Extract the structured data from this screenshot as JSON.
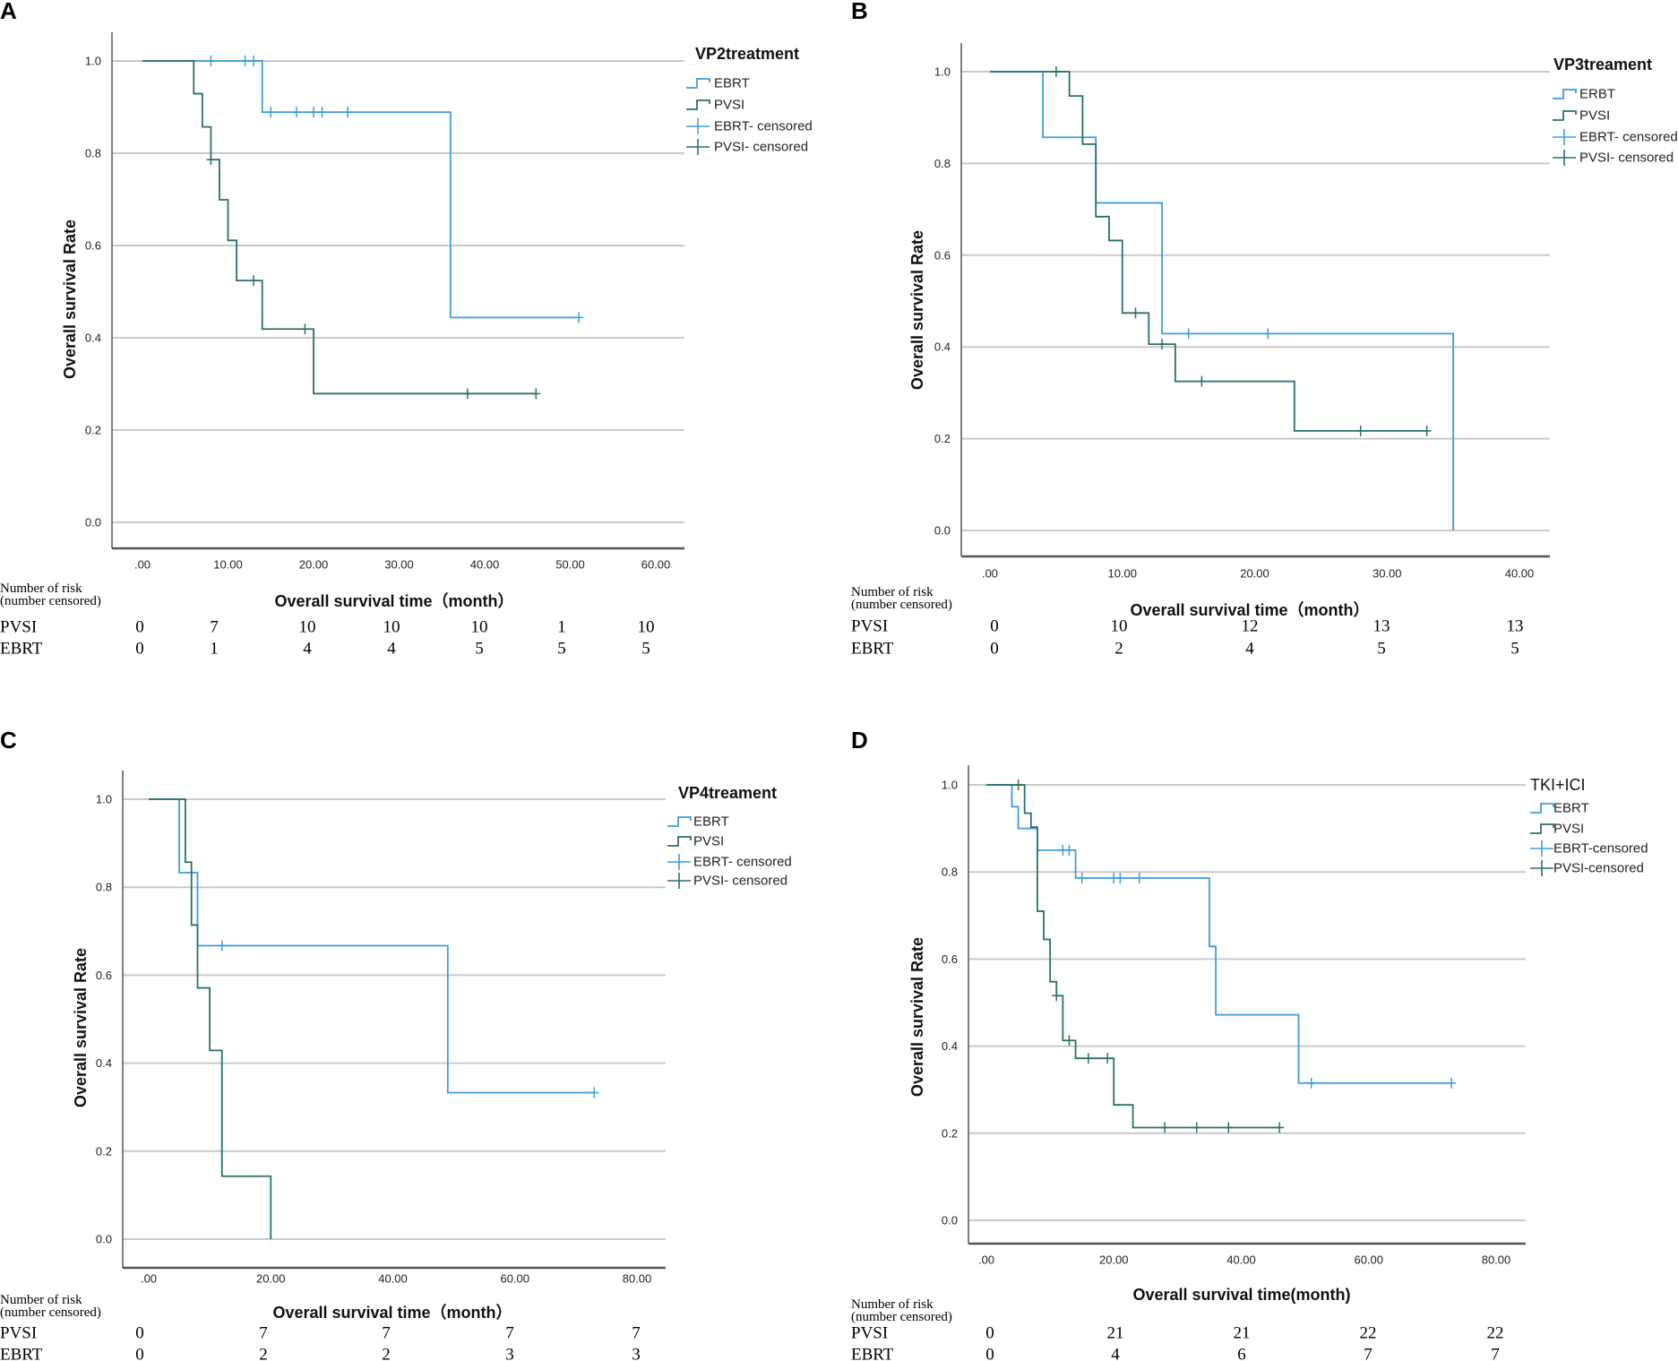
{
  "colors": {
    "EBRT": "#3d9ddc",
    "PVSI": "#2b6f6b",
    "grid": "#c9c9c9",
    "axis": "#555555"
  },
  "chart_data": [
    {
      "panel": "A",
      "type": "line",
      "title": "VP2treatment",
      "xlabel": "Overall survival time（month）",
      "ylabel": "Overall survival Rate",
      "xlim": [
        0,
        60
      ],
      "ylim": [
        0,
        1
      ],
      "xticks": [
        ".00",
        "10.00",
        "20.00",
        "30.00",
        "40.00",
        "50.00",
        "60.00"
      ],
      "yticks": [
        "0.0",
        "0.2",
        "0.4",
        "0.6",
        "0.8",
        "1.0"
      ],
      "legend": [
        "EBRT",
        "PVSI",
        "EBRT- censored",
        "PVSI- censored"
      ],
      "series": [
        {
          "name": "EBRT",
          "points": [
            [
              0,
              1
            ],
            [
              14,
              0.889
            ],
            [
              36,
              0.444
            ],
            [
              51,
              0.444
            ]
          ],
          "censored": [
            [
              8,
              1
            ],
            [
              12,
              1
            ],
            [
              13,
              1
            ],
            [
              15,
              0.889
            ],
            [
              18,
              0.889
            ],
            [
              20,
              0.889
            ],
            [
              21,
              0.889
            ],
            [
              24,
              0.889
            ],
            [
              51,
              0.444
            ]
          ]
        },
        {
          "name": "PVSI",
          "points": [
            [
              0,
              1
            ],
            [
              6,
              0.929
            ],
            [
              7,
              0.857
            ],
            [
              8,
              0.786
            ],
            [
              9,
              0.699
            ],
            [
              10,
              0.611
            ],
            [
              11,
              0.524
            ],
            [
              14,
              0.419
            ],
            [
              20,
              0.279
            ],
            [
              46,
              0.279
            ]
          ],
          "censored": [
            [
              8,
              0.786
            ],
            [
              13,
              0.524
            ],
            [
              19,
              0.419
            ],
            [
              38,
              0.279
            ],
            [
              46,
              0.279
            ]
          ]
        }
      ],
      "risk_table": {
        "header": [
          "Number of risk",
          "(number censored)"
        ],
        "rows": [
          {
            "label": "PVSI",
            "values": [
              "0",
              "7",
              "10",
              "10",
              "10",
              "1",
              "10"
            ]
          },
          {
            "label": "EBRT",
            "values": [
              "0",
              "1",
              "4",
              "4",
              "5",
              "5",
              "5"
            ]
          }
        ]
      }
    },
    {
      "panel": "B",
      "type": "line",
      "title": "VP3treament",
      "xlabel": "Overall survival time（month）",
      "ylabel": "Overall survival Rate",
      "xlim": [
        0,
        40
      ],
      "ylim": [
        0,
        1
      ],
      "xticks": [
        ".00",
        "10.00",
        "20.00",
        "30.00",
        "40.00"
      ],
      "yticks": [
        "0.0",
        "0.2",
        "0.4",
        "0.6",
        "0.8",
        "1.0"
      ],
      "legend": [
        "ERBT",
        "PVSI",
        "EBRT- censored",
        "PVSI- censored"
      ],
      "series": [
        {
          "name": "EBRT",
          "points": [
            [
              0,
              1
            ],
            [
              4,
              0.857
            ],
            [
              8,
              0.714
            ],
            [
              13,
              0.429
            ],
            [
              35,
              0
            ]
          ],
          "censored": [
            [
              15,
              0.429
            ],
            [
              21,
              0.429
            ]
          ]
        },
        {
          "name": "PVSI",
          "points": [
            [
              0,
              1
            ],
            [
              6,
              0.947
            ],
            [
              7,
              0.842
            ],
            [
              8,
              0.684
            ],
            [
              9,
              0.632
            ],
            [
              10,
              0.474
            ],
            [
              12,
              0.406
            ],
            [
              14,
              0.325
            ],
            [
              23,
              0.217
            ],
            [
              33,
              0.217
            ]
          ],
          "censored": [
            [
              5,
              1
            ],
            [
              11,
              0.474
            ],
            [
              13,
              0.406
            ],
            [
              16,
              0.325
            ],
            [
              28,
              0.217
            ],
            [
              33,
              0.217
            ]
          ]
        }
      ],
      "risk_table": {
        "header": [
          "Number of risk",
          "(number censored)"
        ],
        "rows": [
          {
            "label": "PVSI",
            "values": [
              "0",
              "10",
              "12",
              "13",
              "13"
            ]
          },
          {
            "label": "EBRT",
            "values": [
              "0",
              "2",
              "4",
              "5",
              "5"
            ]
          }
        ]
      }
    },
    {
      "panel": "C",
      "type": "line",
      "title": "VP4treament",
      "xlabel": "Overall survival time（month）",
      "ylabel": "Overall survival Rate",
      "xlim": [
        0,
        80
      ],
      "ylim": [
        0,
        1
      ],
      "xticks": [
        ".00",
        "20.00",
        "40.00",
        "60.00",
        "80.00"
      ],
      "yticks": [
        "0.0",
        "0.2",
        "0.4",
        "0.6",
        "0.8",
        "1.0"
      ],
      "legend": [
        "EBRT",
        "PVSI",
        "EBRT- censored",
        "PVSI- censored"
      ],
      "series": [
        {
          "name": "EBRT",
          "points": [
            [
              0,
              1
            ],
            [
              5,
              0.833
            ],
            [
              8,
              0.667
            ],
            [
              49,
              0.333
            ],
            [
              73,
              0.333
            ]
          ],
          "censored": [
            [
              12,
              0.667
            ],
            [
              73,
              0.333
            ]
          ]
        },
        {
          "name": "PVSI",
          "points": [
            [
              0,
              1
            ],
            [
              6,
              0.857
            ],
            [
              7,
              0.714
            ],
            [
              8,
              0.571
            ],
            [
              10,
              0.429
            ],
            [
              12,
              0.143
            ],
            [
              20,
              0
            ]
          ],
          "censored": []
        }
      ],
      "risk_table": {
        "header": [
          "Number of risk",
          "(number censored)"
        ],
        "rows": [
          {
            "label": "PVSI",
            "values": [
              "0",
              "7",
              "7",
              "7",
              "7"
            ]
          },
          {
            "label": "EBRT",
            "values": [
              "0",
              "2",
              "2",
              "3",
              "3"
            ]
          }
        ]
      }
    },
    {
      "panel": "D",
      "type": "line",
      "title": "TKI+ICI",
      "xlabel": "Overall survival time(month)",
      "ylabel": "Overall survival Rate",
      "xlim": [
        0,
        80
      ],
      "ylim": [
        0,
        1
      ],
      "xticks": [
        ".00",
        "20.00",
        "40.00",
        "60.00",
        "80.00"
      ],
      "yticks": [
        "0.0",
        "0.2",
        "0.4",
        "0.6",
        "0.8",
        "1.0"
      ],
      "legend": [
        "EBRT",
        "PVSI",
        "EBRT-censored",
        "PVSI-censored"
      ],
      "series": [
        {
          "name": "EBRT",
          "points": [
            [
              0,
              1
            ],
            [
              4,
              0.95
            ],
            [
              5,
              0.9
            ],
            [
              8,
              0.85
            ],
            [
              14,
              0.786
            ],
            [
              35,
              0.629
            ],
            [
              36,
              0.472
            ],
            [
              49,
              0.315
            ],
            [
              73,
              0.315
            ]
          ],
          "censored": [
            [
              12,
              0.85
            ],
            [
              13,
              0.85
            ],
            [
              15,
              0.786
            ],
            [
              20,
              0.786
            ],
            [
              21,
              0.786
            ],
            [
              24,
              0.786
            ],
            [
              51,
              0.315
            ],
            [
              73,
              0.315
            ]
          ]
        },
        {
          "name": "PVSI",
          "points": [
            [
              0,
              1
            ],
            [
              6,
              0.935
            ],
            [
              7,
              0.903
            ],
            [
              8,
              0.71
            ],
            [
              9,
              0.645
            ],
            [
              10,
              0.548
            ],
            [
              11,
              0.516
            ],
            [
              12,
              0.413
            ],
            [
              14,
              0.372
            ],
            [
              20,
              0.265
            ],
            [
              23,
              0.213
            ],
            [
              46,
              0.213
            ]
          ],
          "censored": [
            [
              5,
              1
            ],
            [
              11,
              0.516
            ],
            [
              13,
              0.413
            ],
            [
              16,
              0.372
            ],
            [
              19,
              0.372
            ],
            [
              28,
              0.213
            ],
            [
              33,
              0.213
            ],
            [
              38,
              0.213
            ],
            [
              46,
              0.213
            ]
          ]
        }
      ],
      "risk_table": {
        "header": [
          "Number of risk",
          "(number censored)"
        ],
        "rows": [
          {
            "label": "PVSI",
            "values": [
              "0",
              "21",
              "21",
              "22",
              "22"
            ]
          },
          {
            "label": "EBRT",
            "values": [
              "0",
              "4",
              "6",
              "7",
              "7"
            ]
          }
        ]
      }
    }
  ]
}
